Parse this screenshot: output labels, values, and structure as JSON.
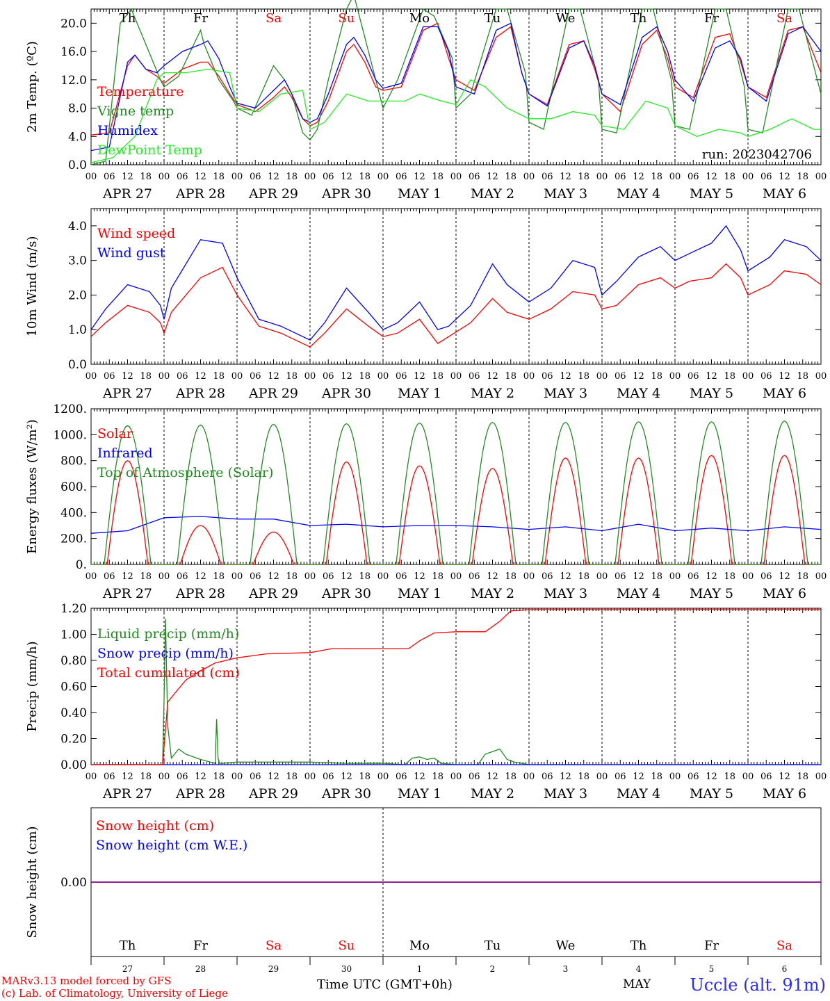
{
  "footer": {
    "model_line": "MARv3.13 model forced by GFS",
    "credit_line": "(c) Lab. of Climatology, University of Liege",
    "time_axis_label": "Time UTC (GMT+0h)",
    "station": "Uccle (alt. 91m)",
    "month_label": "MAY"
  },
  "colors": {
    "red": "#ff0000",
    "green": "#228b22",
    "blue": "#0000ff",
    "lightgreen": "#22ee22",
    "purple": "#800080",
    "black": "#000000"
  },
  "day_names": [
    "Th",
    "Fr",
    "Sa",
    "Su",
    "Mo",
    "Tu",
    "We",
    "Th",
    "Fr",
    "Sa"
  ],
  "weekend_days": [
    2,
    3,
    9
  ],
  "date_labels": [
    "APR 27",
    "APR 28",
    "APR 29",
    "APR 30",
    "MAY  1",
    "MAY  2",
    "MAY  3",
    "MAY  4",
    "MAY  5",
    "MAY  6"
  ],
  "bottom_day_numbers": [
    "27",
    "28",
    "29",
    "30",
    "1",
    "2",
    "3",
    "4",
    "5",
    "6"
  ],
  "hour_ticks": [
    "00",
    "06",
    "12",
    "18"
  ],
  "chart_data": [
    {
      "id": "temperature",
      "type": "line",
      "ylabel": "2m Temp. (ºC)",
      "ylim": [
        0,
        22
      ],
      "yticks": [
        "0.0",
        "4.0",
        "8.0",
        "12.0",
        "16.0",
        "20.0"
      ],
      "ytick_values": [
        0,
        4,
        8,
        12,
        16,
        20
      ],
      "run_label": "run: 2023042706",
      "x_unit": "days since APR 27 00 UTC",
      "series": [
        {
          "name": "Temperature",
          "color": "red",
          "x": [
            0,
            0.25,
            0.5,
            0.6,
            0.75,
            0.9,
            1,
            1.25,
            1.5,
            1.6,
            1.75,
            1.9,
            2,
            2.25,
            2.5,
            2.65,
            2.75,
            2.9,
            3,
            3.1,
            3.25,
            3.5,
            3.6,
            3.75,
            3.9,
            4,
            4.25,
            4.55,
            4.75,
            4.9,
            5,
            5.25,
            5.55,
            5.75,
            5.9,
            6,
            6.25,
            6.55,
            6.75,
            6.9,
            7,
            7.25,
            7.55,
            7.75,
            7.9,
            8,
            8.25,
            8.55,
            8.75,
            8.9,
            9,
            9.25,
            9.55,
            9.75,
            10
          ],
          "y": [
            4.2,
            4.5,
            14,
            15.5,
            13.5,
            12.5,
            11.5,
            13.5,
            14.5,
            14.5,
            12.5,
            10,
            8.5,
            7.5,
            9.5,
            11,
            9.5,
            6.5,
            5.5,
            6,
            9,
            16,
            17,
            14.5,
            11,
            10.5,
            11,
            19,
            20,
            15,
            12,
            10.5,
            18,
            19.5,
            13,
            10,
            8.5,
            17,
            17.5,
            13.5,
            10,
            7.5,
            17,
            19,
            15,
            11,
            9.5,
            18,
            18.5,
            14.5,
            11,
            9.5,
            19,
            19.5,
            13
          ]
        },
        {
          "name": "Vigne temp",
          "color": "green",
          "x": [
            0,
            0.2,
            0.4,
            0.55,
            0.75,
            0.95,
            1,
            1.2,
            1.5,
            1.55,
            1.75,
            1.95,
            2,
            2.2,
            2.5,
            2.65,
            2.75,
            2.9,
            3,
            3.1,
            3.25,
            3.5,
            3.6,
            3.75,
            3.95,
            4,
            4.2,
            4.55,
            4.7,
            4.95,
            5,
            5.2,
            5.55,
            5.7,
            5.95,
            6,
            6.2,
            6.55,
            6.7,
            6.95,
            7,
            7.2,
            7.55,
            7.7,
            7.95,
            8,
            8.2,
            8.55,
            8.7,
            8.95,
            9,
            9.2,
            9.55,
            9.7,
            10
          ],
          "y": [
            0,
            0.5,
            20,
            22,
            17,
            12,
            11,
            12.5,
            19,
            17,
            12,
            9,
            8,
            7,
            14,
            12,
            10,
            4.5,
            3.5,
            5,
            12,
            22,
            24,
            18,
            10,
            8,
            12,
            22,
            21,
            15,
            8,
            10,
            22,
            22,
            13,
            6,
            5,
            22,
            22,
            12,
            5,
            4.5,
            22,
            22,
            12,
            5.5,
            5,
            22,
            22,
            11,
            5,
            4.5,
            22,
            22,
            10
          ]
        },
        {
          "name": "Humidex",
          "color": "blue",
          "x": [
            0,
            0.25,
            0.5,
            0.6,
            0.75,
            0.9,
            1,
            1.25,
            1.5,
            1.6,
            1.75,
            1.9,
            2,
            2.25,
            2.5,
            2.65,
            2.75,
            2.9,
            3,
            3.1,
            3.25,
            3.5,
            3.6,
            3.75,
            3.9,
            4,
            4.25,
            4.55,
            4.75,
            4.9,
            5,
            5.25,
            5.55,
            5.75,
            5.9,
            6,
            6.25,
            6.55,
            6.75,
            6.9,
            7,
            7.25,
            7.55,
            7.75,
            7.9,
            8,
            8.25,
            8.55,
            8.75,
            8.9,
            9,
            9.25,
            9.55,
            9.75,
            10
          ],
          "y": [
            2,
            2.5,
            14.5,
            15.5,
            13.5,
            13,
            14,
            16,
            17,
            17.5,
            15,
            11,
            8.7,
            8,
            10.5,
            12,
            10,
            6.5,
            6,
            6.5,
            10,
            17,
            18,
            15.5,
            12,
            10.8,
            11.5,
            19.5,
            19.5,
            16,
            11,
            10,
            19,
            20,
            13,
            10,
            8.3,
            16.5,
            17.5,
            14,
            10,
            8.5,
            18,
            19.5,
            16,
            12,
            9,
            16.5,
            17.5,
            15,
            11,
            9,
            18.5,
            19.5,
            16
          ]
        },
        {
          "name": "DewPoint Temp",
          "color": "lightgreen",
          "x": [
            0,
            0.3,
            0.6,
            0.9,
            1,
            1.3,
            1.6,
            1.9,
            2,
            2.3,
            2.6,
            2.9,
            3,
            3.2,
            3.5,
            3.8,
            4,
            4.3,
            4.5,
            4.8,
            5,
            5.2,
            5.4,
            5.7,
            6,
            6.3,
            6.6,
            6.9,
            7,
            7.3,
            7.6,
            7.9,
            8,
            8.3,
            8.6,
            8.9,
            9,
            9.3,
            9.6,
            9.9,
            10
          ],
          "y": [
            0.3,
            1,
            4,
            12,
            13,
            13,
            13.5,
            13,
            8,
            7.5,
            10,
            10.5,
            5,
            6,
            10,
            9,
            9,
            9,
            10,
            9,
            8.5,
            12,
            11,
            8,
            6.5,
            6.5,
            7.5,
            7,
            5.5,
            5,
            9,
            8,
            5.5,
            4,
            5,
            4.5,
            4,
            5,
            6.5,
            5,
            5
          ]
        }
      ]
    },
    {
      "id": "wind",
      "type": "line",
      "ylabel": "10m Wind (m/s)",
      "ylim": [
        0,
        4.5
      ],
      "yticks": [
        "0.0",
        "1.0",
        "2.0",
        "3.0",
        "4.0"
      ],
      "ytick_values": [
        0,
        1,
        2,
        3,
        4
      ],
      "series": [
        {
          "name": "Wind speed",
          "color": "red",
          "x": [
            0,
            0.2,
            0.5,
            0.8,
            0.95,
            1,
            1.1,
            1.5,
            1.8,
            2,
            2.3,
            2.6,
            2.8,
            3,
            3.2,
            3.5,
            3.8,
            4,
            4.2,
            4.5,
            4.75,
            4.9,
            5.2,
            5.5,
            5.7,
            6,
            6.3,
            6.6,
            6.9,
            7,
            7.2,
            7.5,
            7.8,
            8,
            8.2,
            8.5,
            8.7,
            8.9,
            9,
            9.3,
            9.5,
            9.8,
            10
          ],
          "y": [
            0.8,
            1.2,
            1.7,
            1.5,
            1.2,
            0.9,
            1.5,
            2.5,
            2.8,
            2.0,
            1.1,
            0.9,
            0.7,
            0.5,
            0.9,
            1.6,
            1.1,
            0.8,
            0.9,
            1.3,
            0.6,
            0.8,
            1.2,
            1.9,
            1.5,
            1.3,
            1.6,
            2.1,
            2.0,
            1.6,
            1.7,
            2.3,
            2.5,
            2.2,
            2.4,
            2.5,
            2.9,
            2.5,
            2.0,
            2.3,
            2.7,
            2.6,
            2.3
          ]
        },
        {
          "name": "Wind gust",
          "color": "blue",
          "x": [
            0,
            0.2,
            0.5,
            0.8,
            0.95,
            1,
            1.1,
            1.5,
            1.8,
            2,
            2.3,
            2.6,
            2.8,
            3,
            3.2,
            3.5,
            3.8,
            4,
            4.2,
            4.5,
            4.75,
            4.9,
            5.2,
            5.5,
            5.7,
            6,
            6.3,
            6.6,
            6.9,
            7,
            7.2,
            7.5,
            7.8,
            8,
            8.2,
            8.5,
            8.7,
            8.9,
            9,
            9.3,
            9.5,
            9.8,
            10
          ],
          "y": [
            1.0,
            1.6,
            2.3,
            2.1,
            1.7,
            1.3,
            2.2,
            3.6,
            3.5,
            2.5,
            1.3,
            1.1,
            0.9,
            0.7,
            1.2,
            2.2,
            1.5,
            1.0,
            1.2,
            1.8,
            1.0,
            1.1,
            1.7,
            2.9,
            2.3,
            1.8,
            2.2,
            3.0,
            2.8,
            2.0,
            2.4,
            3.1,
            3.4,
            3.0,
            3.2,
            3.5,
            4.0,
            3.3,
            2.7,
            3.1,
            3.6,
            3.4,
            3.0
          ]
        }
      ]
    },
    {
      "id": "energy",
      "type": "line",
      "ylabel": "Energy fluxes (W/m²)",
      "ylim": [
        0,
        1200
      ],
      "yticks": [
        "0.",
        "200.",
        "400.",
        "600.",
        "800.",
        "1000.",
        "1200."
      ],
      "ytick_values": [
        0,
        200,
        400,
        600,
        800,
        1000,
        1200
      ],
      "series": [
        {
          "name": "Solar",
          "color": "red",
          "day_peaks": [
            800,
            300,
            250,
            790,
            760,
            740,
            820,
            820,
            840,
            840
          ]
        },
        {
          "name": "Infrared",
          "color": "blue",
          "x": [
            0,
            0.5,
            1,
            1.5,
            2,
            2.5,
            3,
            3.5,
            4,
            4.5,
            5,
            5.5,
            6,
            6.5,
            7,
            7.5,
            8,
            8.5,
            9,
            9.5,
            10
          ],
          "y": [
            240,
            260,
            360,
            370,
            350,
            350,
            300,
            310,
            290,
            300,
            300,
            290,
            270,
            290,
            260,
            310,
            260,
            280,
            260,
            290,
            270
          ]
        },
        {
          "name": "Top of Atmosphere (Solar)",
          "color": "green",
          "day_peaks": [
            1070,
            1075,
            1080,
            1085,
            1090,
            1095,
            1095,
            1100,
            1100,
            1105
          ]
        }
      ]
    },
    {
      "id": "precip",
      "type": "line",
      "ylabel": "Precip (mm/h)",
      "ylim": [
        0,
        1.2
      ],
      "yticks": [
        "0.00",
        "0.20",
        "0.40",
        "0.60",
        "0.80",
        "1.00",
        "1.20"
      ],
      "ytick_values": [
        0,
        0.2,
        0.4,
        0.6,
        0.8,
        1.0,
        1.2
      ],
      "series": [
        {
          "name": "Liquid precip (mm/h)",
          "color": "green",
          "x": [
            0,
            0.98,
            1.0,
            1.02,
            1.05,
            1.1,
            1.2,
            1.3,
            1.5,
            1.7,
            1.72,
            1.74,
            1.76,
            1.8,
            2,
            3,
            3.5,
            4,
            4.3,
            4.4,
            4.5,
            4.6,
            4.7,
            4.8,
            5,
            5.3,
            5.4,
            5.5,
            5.6,
            5.7,
            5.8,
            6,
            10
          ],
          "y": [
            0,
            0,
            0.5,
            1.12,
            0.3,
            0.05,
            0.12,
            0.08,
            0.04,
            0.01,
            0.35,
            0.05,
            0.01,
            0.01,
            0.02,
            0.02,
            0.01,
            0.01,
            0.0,
            0.05,
            0.06,
            0.04,
            0.05,
            0.01,
            0,
            0,
            0.08,
            0.1,
            0.12,
            0.04,
            0.02,
            0,
            0
          ]
        },
        {
          "name": "Snow precip (mm/h)",
          "color": "blue",
          "x": [
            0,
            10
          ],
          "y": [
            0,
            0
          ]
        },
        {
          "name": "Total cumulated (cm)",
          "color": "red",
          "x": [
            0,
            0.98,
            1.05,
            1.15,
            1.3,
            1.5,
            1.7,
            2.0,
            2.4,
            3.0,
            3.3,
            4.0,
            4.35,
            4.5,
            4.7,
            5.0,
            5.4,
            5.6,
            5.75,
            6.0,
            10
          ],
          "y": [
            0,
            0,
            0.48,
            0.55,
            0.65,
            0.72,
            0.78,
            0.82,
            0.85,
            0.86,
            0.89,
            0.89,
            0.89,
            0.95,
            1.01,
            1.02,
            1.02,
            1.1,
            1.18,
            1.19,
            1.19
          ]
        }
      ]
    },
    {
      "id": "snow",
      "type": "line",
      "ylabel": "Snow height (cm)",
      "ylim": [
        -1,
        1
      ],
      "yticks": [
        "0.00"
      ],
      "ytick_values": [
        0
      ],
      "series": [
        {
          "name": "Snow height (cm)",
          "color": "red",
          "x": [
            0,
            10
          ],
          "y": [
            0,
            0
          ]
        },
        {
          "name": "Snow height (cm W.E.)",
          "color": "blue",
          "x": [
            0,
            10
          ],
          "y": [
            0,
            0
          ]
        }
      ]
    }
  ]
}
